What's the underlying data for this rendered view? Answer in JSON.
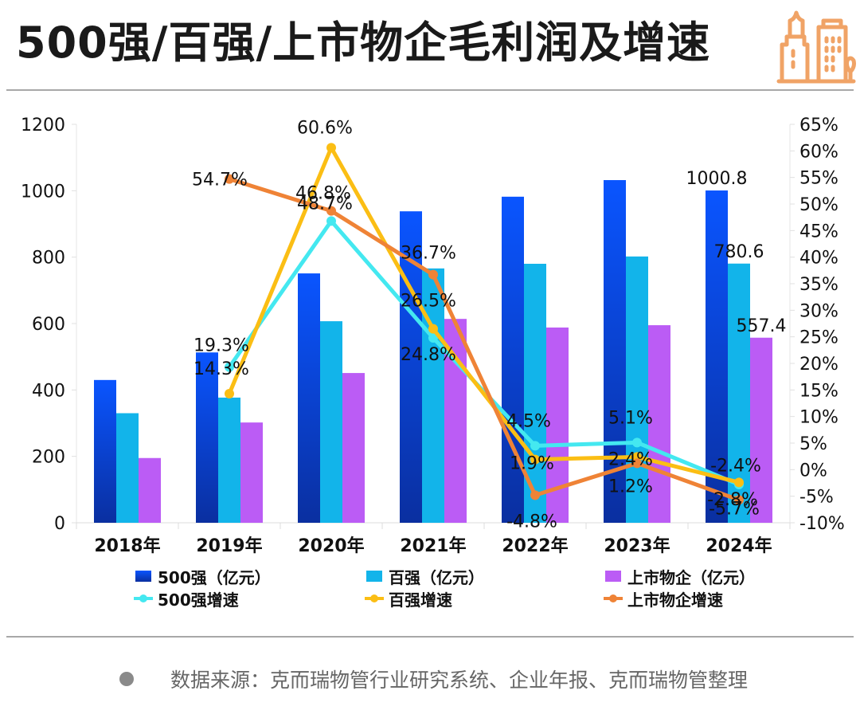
{
  "header": {
    "title": "500强/百强/上市物企毛利润及增速",
    "icon": "city-buildings-icon"
  },
  "footer": {
    "source_text": "数据来源：克而瑞物管行业研究系统、企业年报、克而瑞物管整理"
  },
  "colors": {
    "bar_500_top": "#0a55ff",
    "bar_500_bottom": "#0a2fa0",
    "bar_100": "#12b4ea",
    "bar_listed": "#bb5cf5",
    "line_500": "#44e8f0",
    "line_100": "#fbbe14",
    "line_listed": "#ef8336",
    "icon_orange": "#f0a366"
  },
  "chart_data": {
    "type": "bar",
    "title": "500强/百强/上市物企毛利润及增速",
    "categories": [
      "2018年",
      "2019年",
      "2020年",
      "2021年",
      "2022年",
      "2023年",
      "2024年"
    ],
    "series": [
      {
        "name": "500强（亿元）",
        "type": "bar",
        "axis": "left",
        "values": [
          430,
          513,
          751,
          938,
          982,
          1032,
          1000.8
        ]
      },
      {
        "name": "百强（亿元）",
        "type": "bar",
        "axis": "left",
        "values": [
          330,
          377,
          607,
          766,
          780,
          802,
          780.6
        ]
      },
      {
        "name": "上市物企（亿元）",
        "type": "bar",
        "axis": "left",
        "values": [
          195,
          302,
          451,
          614,
          588,
          595,
          557.4
        ]
      },
      {
        "name": "500强增速",
        "type": "line",
        "axis": "right",
        "values": [
          null,
          19.3,
          46.8,
          24.8,
          4.5,
          5.1,
          -2.8
        ]
      },
      {
        "name": "百强增速",
        "type": "line",
        "axis": "right",
        "values": [
          null,
          14.3,
          60.6,
          26.5,
          1.9,
          2.4,
          -2.4
        ]
      },
      {
        "name": "上市物企增速",
        "type": "line",
        "axis": "right",
        "values": [
          null,
          54.7,
          48.7,
          36.7,
          -4.8,
          1.2,
          -5.7
        ]
      }
    ],
    "bar_labels": {
      "2024年": [
        "1000.8",
        "780.6",
        "557.4"
      ]
    },
    "line_labels": [
      {
        "series": "500强增速",
        "labels": [
          null,
          "19.3%",
          "46.8%",
          "24.8%",
          "4.5%",
          "5.1%",
          "-2.8%"
        ]
      },
      {
        "series": "百强增速",
        "labels": [
          null,
          "14.3%",
          "60.6%",
          "26.5%",
          "1.9%",
          "2.4%",
          "-2.4%"
        ]
      },
      {
        "series": "上市物企增速",
        "labels": [
          null,
          "54.7%",
          "48.7%",
          "36.7%",
          "-4.8%",
          "1.2%",
          "-5.7%"
        ]
      }
    ],
    "y_left": {
      "min": 0,
      "max": 1200,
      "ticks": [
        "0",
        "200",
        "400",
        "600",
        "800",
        "1000",
        "1200"
      ]
    },
    "y_right": {
      "min": -10,
      "max": 65,
      "ticks": [
        "-10%",
        "-5%",
        "0%",
        "5%",
        "10%",
        "15%",
        "20%",
        "25%",
        "30%",
        "35%",
        "40%",
        "45%",
        "50%",
        "55%",
        "60%",
        "65%"
      ]
    },
    "xlabel": "",
    "ylabel": "",
    "grid": false,
    "legend": {
      "position": "bottom",
      "items": [
        {
          "label": "500强（亿元）",
          "kind": "bar",
          "series": 0
        },
        {
          "label": "百强（亿元）",
          "kind": "bar",
          "series": 1
        },
        {
          "label": "上市物企（亿元）",
          "kind": "bar",
          "series": 2
        },
        {
          "label": "500强增速",
          "kind": "line",
          "series": 3
        },
        {
          "label": "百强增速",
          "kind": "line",
          "series": 4
        },
        {
          "label": "上市物企增速",
          "kind": "line",
          "series": 5
        }
      ]
    }
  }
}
